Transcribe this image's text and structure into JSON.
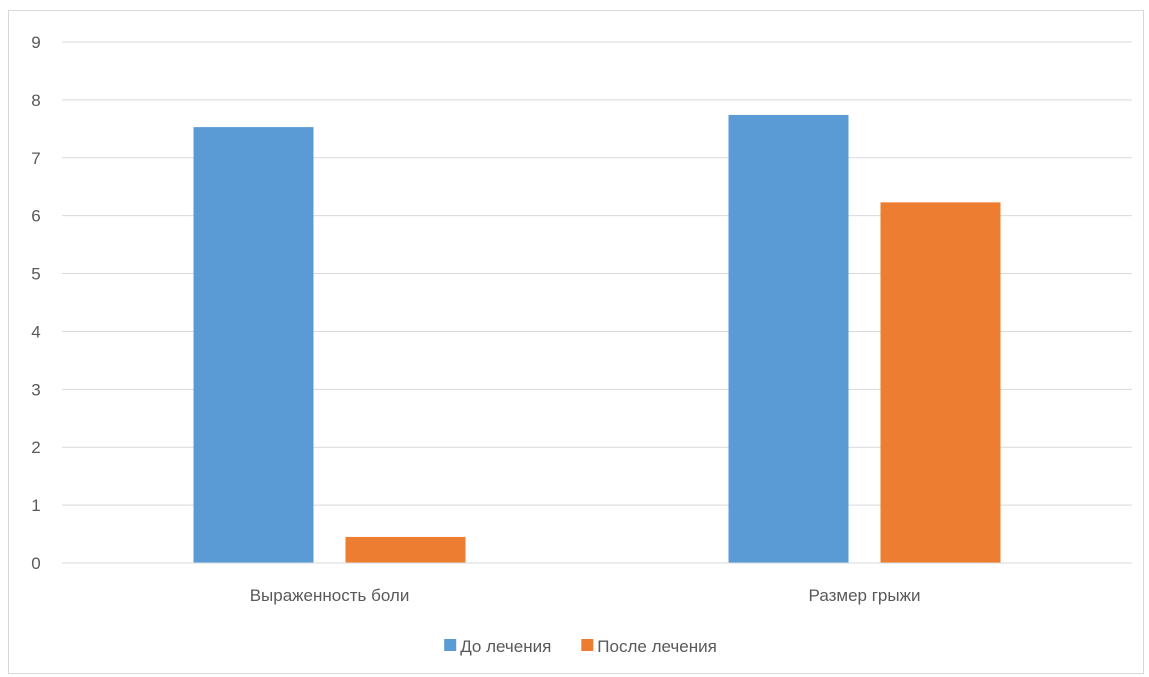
{
  "chart_data": {
    "type": "bar",
    "categories": [
      "Выраженность боли",
      "Размер грыжи"
    ],
    "series": [
      {
        "name": "До лечения",
        "values": [
          7.53,
          7.74
        ],
        "color": "#5b9bd5"
      },
      {
        "name": "После лечения",
        "values": [
          0.45,
          6.23
        ],
        "color": "#ed7d31"
      }
    ],
    "ylim": [
      0,
      9
    ],
    "yticks": [
      0,
      1,
      2,
      3,
      4,
      5,
      6,
      7,
      8,
      9
    ],
    "grid": true,
    "legend_position": "bottom"
  }
}
